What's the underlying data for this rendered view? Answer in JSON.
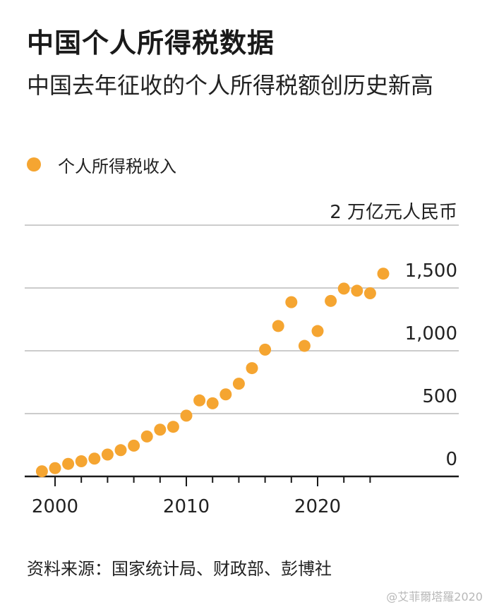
{
  "header": {
    "title": "中国个人所得税数据",
    "subtitle": "中国去年征收的个人所得税额创历史新高"
  },
  "legend": {
    "label": "个人所得税收入"
  },
  "colors": {
    "points": "#f5a531",
    "grid": "#cccccc",
    "axis": "#1a1a1a"
  },
  "footer": {
    "source": "资料来源：国家统计局、财政部、彭博社",
    "watermark": "@艾菲爾塔羅2020"
  },
  "chart_data": {
    "type": "scatter",
    "ylabel": "2 万亿元人民币",
    "xlim": [
      1998.5,
      2030
    ],
    "ylim": [
      0,
      2000
    ],
    "y_ticks": [
      {
        "value": 0,
        "label": "0"
      },
      {
        "value": 500,
        "label": "500"
      },
      {
        "value": 1000,
        "label": "1,000"
      },
      {
        "value": 1500,
        "label": "1,500"
      }
    ],
    "x_tick_labels": [
      {
        "value": 2000,
        "label": "2000"
      },
      {
        "value": 2010,
        "label": "2010"
      },
      {
        "value": 2020,
        "label": "2020"
      }
    ],
    "x_minor_ticks": [
      2000,
      2002,
      2004,
      2006,
      2008,
      2010,
      2012,
      2014,
      2016,
      2018,
      2020,
      2022,
      2024
    ],
    "series": [
      {
        "x": [
          1999,
          2000,
          2001,
          2002,
          2003,
          2004,
          2005,
          2006,
          2007,
          2008,
          2009,
          2010,
          2011,
          2012,
          2013,
          2014,
          2015,
          2016,
          2017,
          2018,
          2019,
          2020,
          2021,
          2022,
          2023,
          2024,
          2025
        ],
        "values": [
          41,
          66,
          100,
          121,
          142,
          174,
          209,
          245,
          318,
          372,
          395,
          484,
          605,
          582,
          653,
          738,
          862,
          1009,
          1197,
          1387,
          1039,
          1157,
          1397,
          1495,
          1478,
          1458,
          1614
        ]
      }
    ]
  }
}
